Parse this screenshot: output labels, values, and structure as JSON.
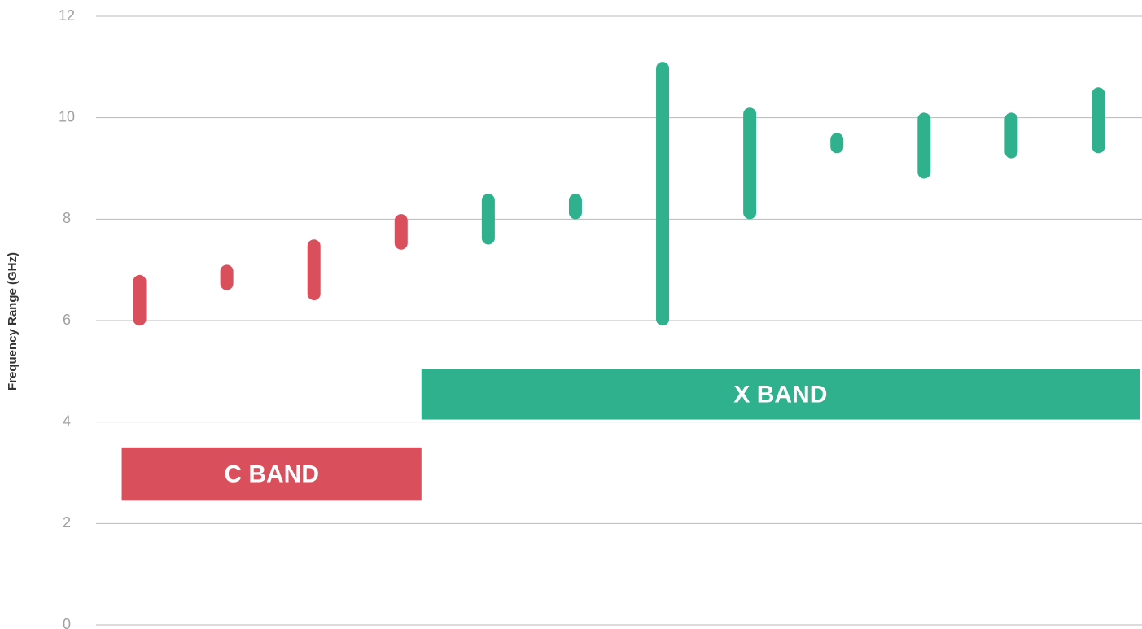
{
  "chart_data": {
    "type": "range-bar",
    "y_label": "Frequency Range (GHz)",
    "categories": [
      null,
      null,
      null,
      null,
      null,
      null,
      null,
      null,
      null,
      null,
      null,
      null
    ],
    "series": [
      {
        "name": "C BAND",
        "color": "#d94f5c",
        "low": [
          5.9,
          6.6,
          6.4,
          7.4,
          null,
          null,
          null,
          null,
          null,
          null,
          null,
          null
        ],
        "high": [
          6.9,
          7.1,
          7.6,
          8.1,
          null,
          null,
          null,
          null,
          null,
          null,
          null,
          null
        ],
        "band": [
          2.45,
          3.5
        ]
      },
      {
        "name": "X BAND",
        "color": "#2eb18c",
        "low": [
          null,
          null,
          null,
          null,
          7.5,
          8.0,
          5.9,
          8.0,
          9.3,
          8.8,
          9.2,
          9.3
        ],
        "high": [
          null,
          null,
          null,
          null,
          8.5,
          8.5,
          11.1,
          10.2,
          9.7,
          10.1,
          10.1,
          10.6
        ],
        "band": [
          4.05,
          5.05
        ]
      }
    ],
    "ylim": [
      0,
      12
    ],
    "yticks": [
      0,
      2,
      4,
      6,
      8,
      10,
      12
    ],
    "grid": true
  }
}
